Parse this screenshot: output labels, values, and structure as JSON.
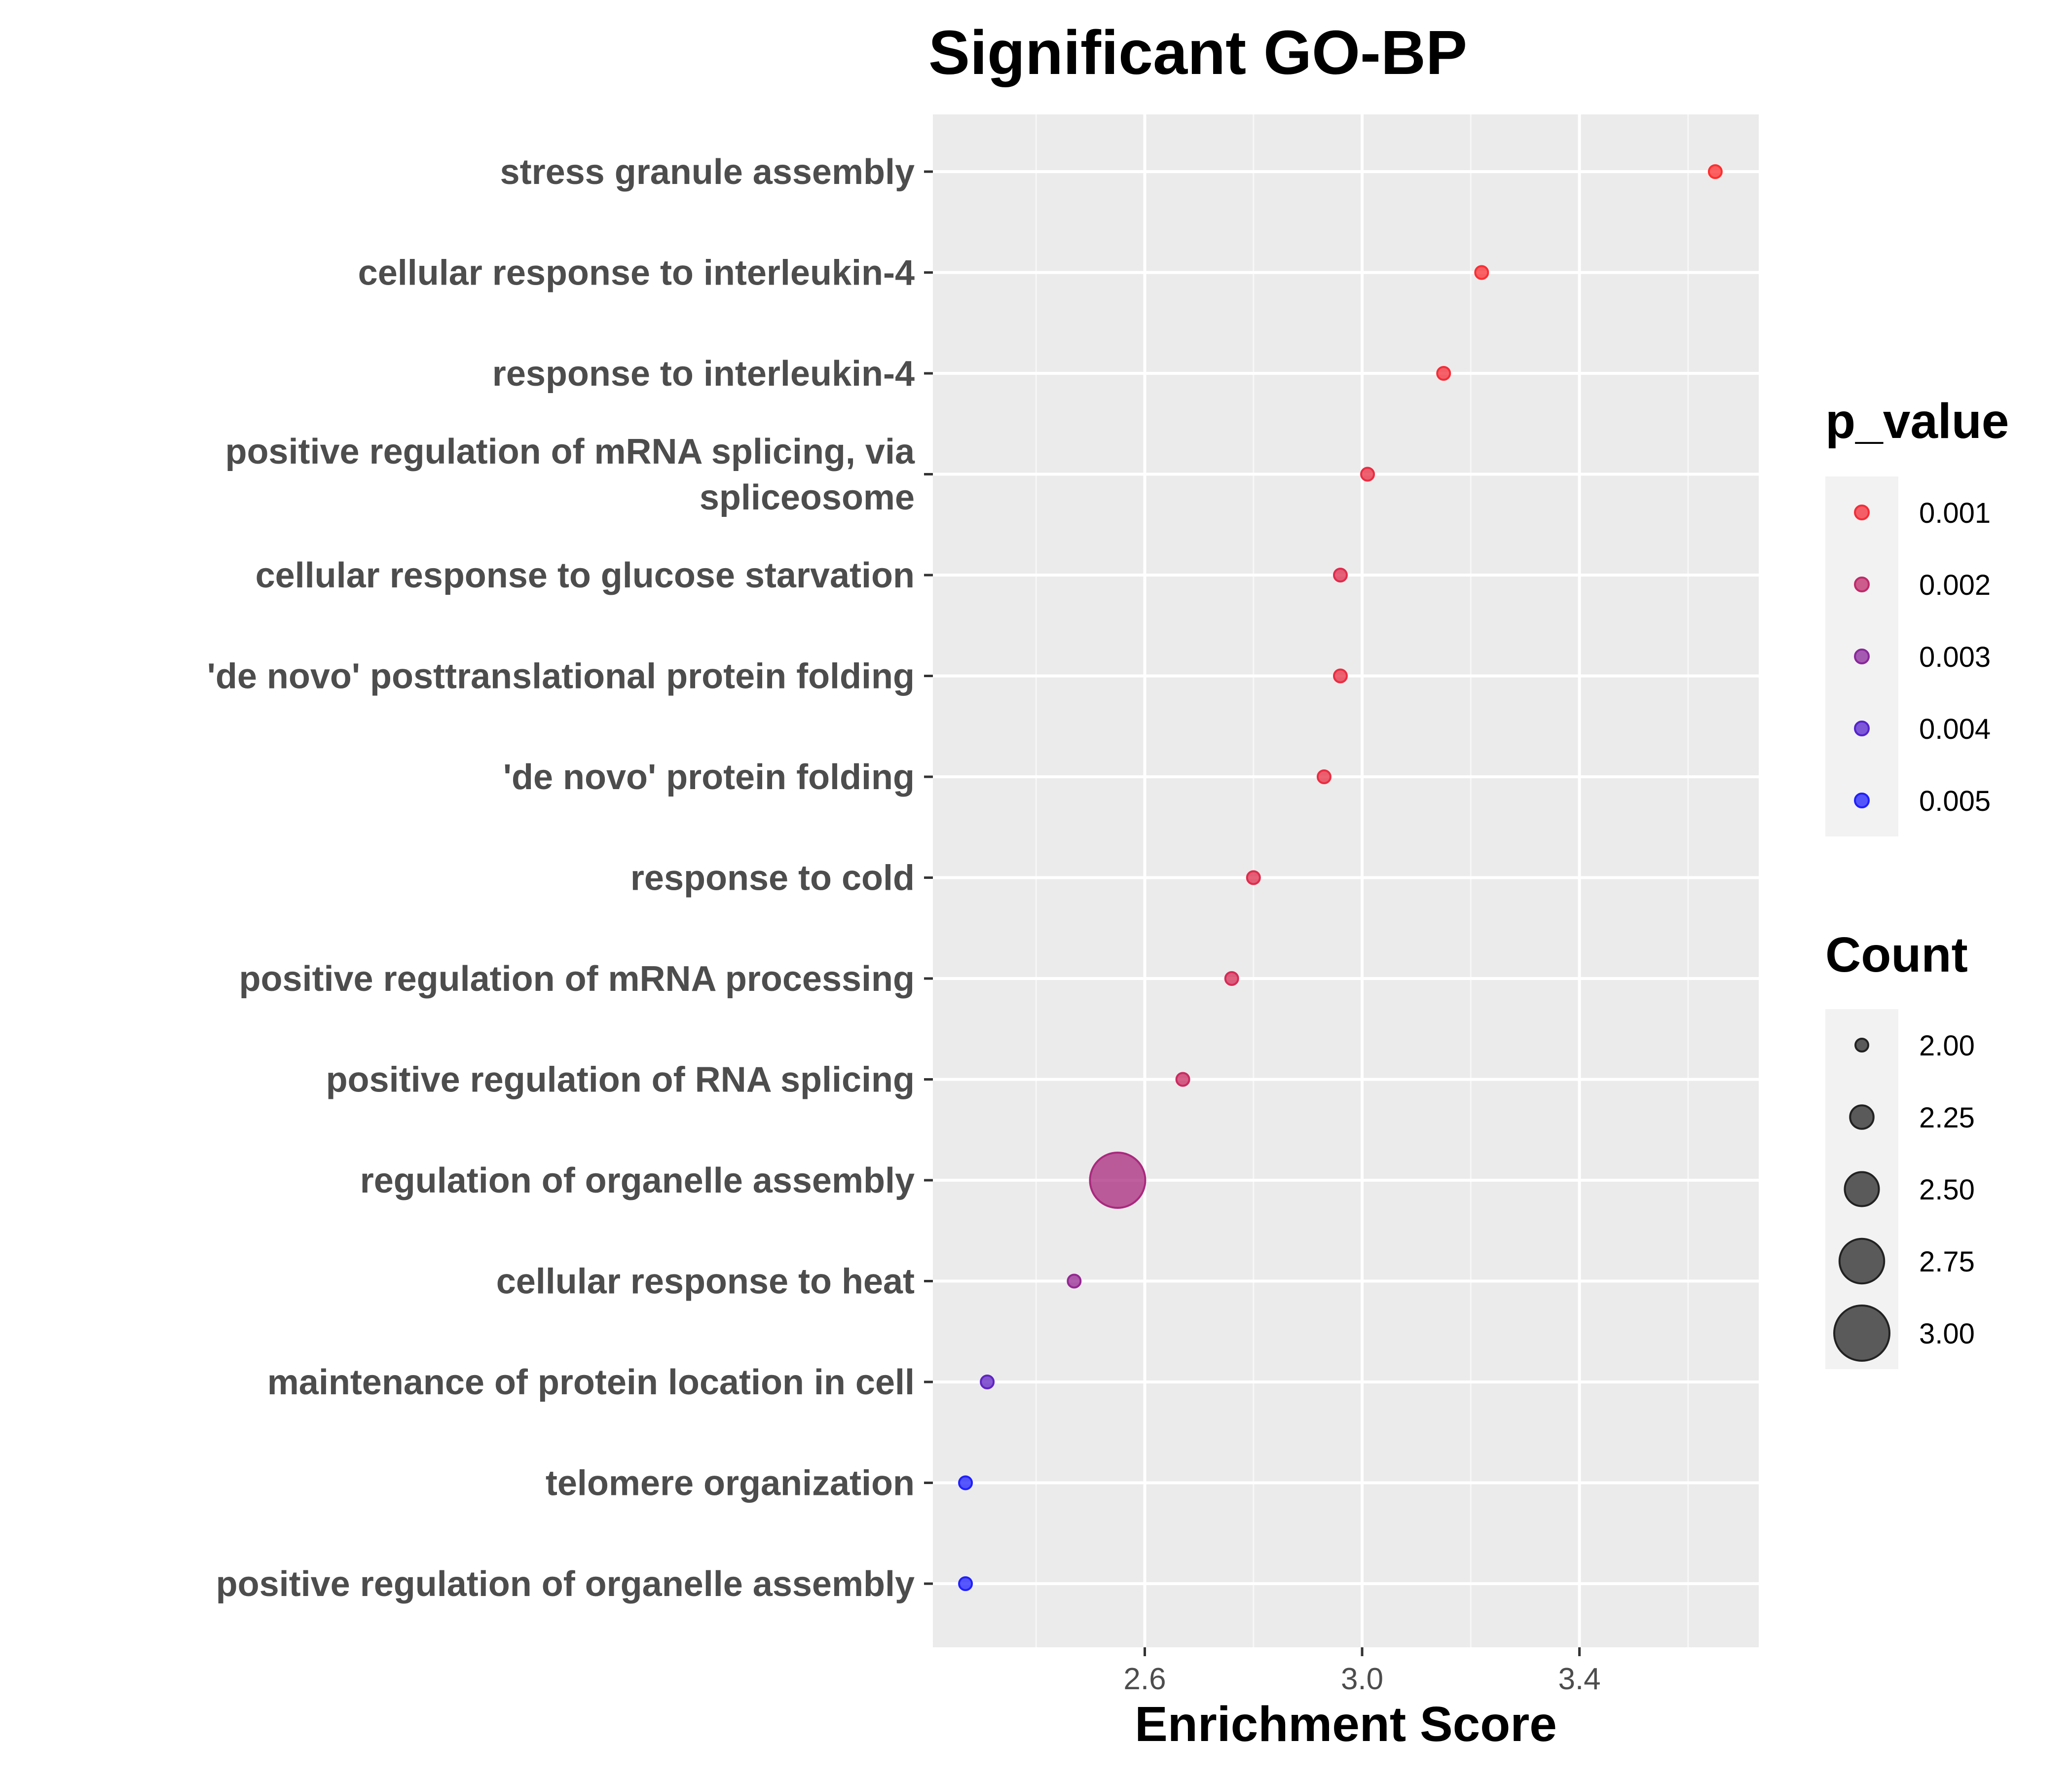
{
  "chart_data": {
    "type": "scatter",
    "title": "Significant GO-BP",
    "xlabel": "Enrichment Score",
    "ylabel": "",
    "xlim": [
      2.21,
      3.73
    ],
    "xticks": [
      2.6,
      3.0,
      3.4
    ],
    "xtick_labels": [
      "2.6",
      "3.0",
      "3.4"
    ],
    "x_minor_ticks": [
      2.4,
      2.8,
      3.2,
      3.6
    ],
    "grid": true,
    "legend_position": "right",
    "categories": [
      {
        "label_lines": [
          "stress granule assembly"
        ],
        "x": 3.65,
        "count": 2,
        "p_value": 0.0008
      },
      {
        "label_lines": [
          "cellular response to interleukin-4"
        ],
        "x": 3.22,
        "count": 2,
        "p_value": 0.0009
      },
      {
        "label_lines": [
          "response to interleukin-4"
        ],
        "x": 3.15,
        "count": 2,
        "p_value": 0.001
      },
      {
        "label_lines": [
          "positive regulation of mRNA splicing, via",
          "spliceosome"
        ],
        "x": 3.01,
        "count": 2,
        "p_value": 0.0012
      },
      {
        "label_lines": [
          "cellular response to glucose starvation"
        ],
        "x": 2.96,
        "count": 2,
        "p_value": 0.0014
      },
      {
        "label_lines": [
          "'de novo' posttranslational protein folding"
        ],
        "x": 2.96,
        "count": 2,
        "p_value": 0.0012
      },
      {
        "label_lines": [
          "'de novo' protein folding"
        ],
        "x": 2.93,
        "count": 2,
        "p_value": 0.0012
      },
      {
        "label_lines": [
          "response to cold"
        ],
        "x": 2.8,
        "count": 2,
        "p_value": 0.0014
      },
      {
        "label_lines": [
          "positive regulation of mRNA processing"
        ],
        "x": 2.76,
        "count": 2,
        "p_value": 0.0016
      },
      {
        "label_lines": [
          "positive regulation of RNA splicing"
        ],
        "x": 2.67,
        "count": 2,
        "p_value": 0.0018
      },
      {
        "label_lines": [
          "regulation of organelle assembly"
        ],
        "x": 2.55,
        "count": 3,
        "p_value": 0.0024
      },
      {
        "label_lines": [
          "cellular response to heat"
        ],
        "x": 2.47,
        "count": 2,
        "p_value": 0.0028
      },
      {
        "label_lines": [
          "maintenance of protein location in cell"
        ],
        "x": 2.31,
        "count": 2,
        "p_value": 0.0038
      },
      {
        "label_lines": [
          "telomere organization"
        ],
        "x": 2.27,
        "count": 2,
        "p_value": 0.005
      },
      {
        "label_lines": [
          "positive regulation of organelle assembly"
        ],
        "x": 2.27,
        "count": 2,
        "p_value": 0.005
      }
    ],
    "legend_p_value": {
      "title": "p_value",
      "entries": [
        {
          "label": "0.001",
          "value": 0.001
        },
        {
          "label": "0.002",
          "value": 0.002
        },
        {
          "label": "0.003",
          "value": 0.003
        },
        {
          "label": "0.004",
          "value": 0.004
        },
        {
          "label": "0.005",
          "value": 0.005
        }
      ],
      "color_low": "#ff2e2e",
      "color_high": "#2020ff"
    },
    "legend_count": {
      "title": "Count",
      "entries": [
        {
          "label": "2.00",
          "value": 2.0
        },
        {
          "label": "2.25",
          "value": 2.25
        },
        {
          "label": "2.50",
          "value": 2.5
        },
        {
          "label": "2.75",
          "value": 2.75
        },
        {
          "label": "3.00",
          "value": 3.0
        }
      ]
    },
    "colors": {
      "panel_background": "#ebebeb",
      "grid_major": "#ffffff",
      "legend_key_background": "#f2f2f2",
      "count_legend_fill": "#333333"
    }
  }
}
